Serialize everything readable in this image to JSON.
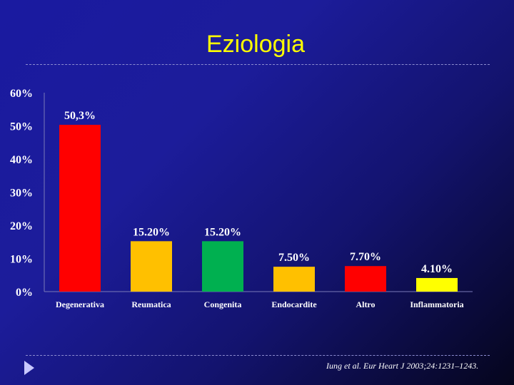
{
  "slide": {
    "title": "Eziologia",
    "citation": "Iung et al. Eur Heart J 2003;24:1231–1243."
  },
  "chart_data": {
    "type": "bar",
    "categories": [
      "Degenerativa",
      "Reumatica",
      "Congenita",
      "Endocardite",
      "Altro",
      "Inflammatoria"
    ],
    "values": [
      50.3,
      15.2,
      15.2,
      7.5,
      7.7,
      4.1
    ],
    "data_labels": [
      "50,3%",
      "15.20%",
      "15.20%",
      "7.50%",
      "7.70%",
      "4.10%"
    ],
    "colors": [
      "#ff0000",
      "#ffc000",
      "#00b050",
      "#ffc000",
      "#ff0000",
      "#ffff00"
    ],
    "yticks": [
      0,
      10,
      20,
      30,
      40,
      50,
      60
    ],
    "ytick_labels": [
      "0%",
      "10%",
      "20%",
      "30%",
      "40%",
      "50%",
      "60%"
    ],
    "ylim": [
      0,
      60
    ],
    "title": "",
    "xlabel": "",
    "ylabel": "",
    "grid": false,
    "label_color": "#ffffff",
    "axis_color": "#7a7ab8"
  }
}
